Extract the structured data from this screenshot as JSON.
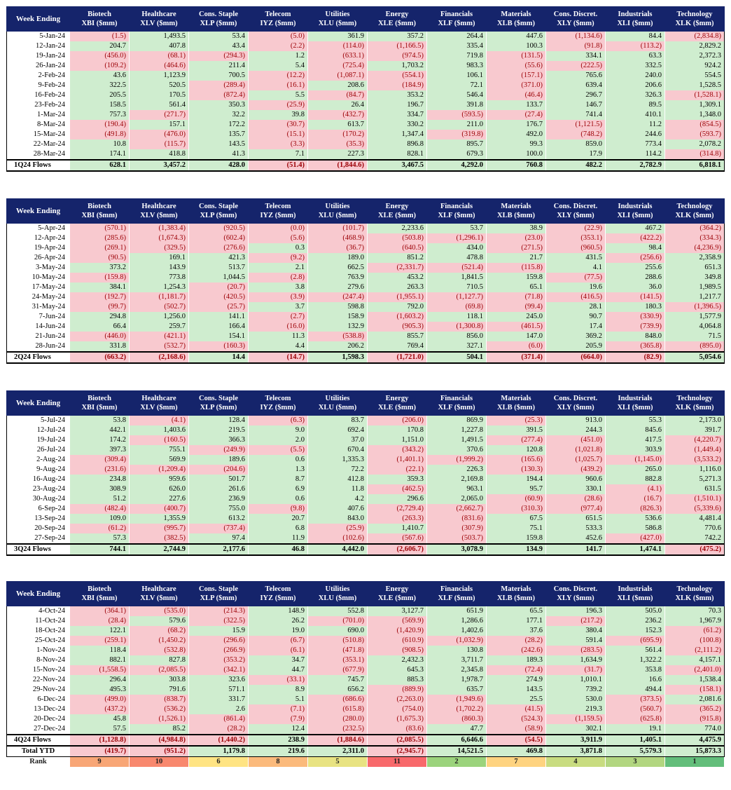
{
  "header": {
    "week_ending": "Week Ending",
    "columns": [
      {
        "sector": "Biotech",
        "ticker": "XBI ($mm)"
      },
      {
        "sector": "Healthcare",
        "ticker": "XLV ($mm)"
      },
      {
        "sector": "Cons. Staple",
        "ticker": "XLP ($mm)"
      },
      {
        "sector": "Telecom",
        "ticker": "IYZ ($mm)"
      },
      {
        "sector": "Utilities",
        "ticker": "XLU ($mm)"
      },
      {
        "sector": "Energy",
        "ticker": "XLE ($mm)"
      },
      {
        "sector": "Financials",
        "ticker": "XLF ($mm)"
      },
      {
        "sector": "Materials",
        "ticker": "XLB ($mm)"
      },
      {
        "sector": "Cons. Discret.",
        "ticker": "XLY ($mm)"
      },
      {
        "sector": "Industrials",
        "ticker": "XLI ($mm)"
      },
      {
        "sector": "Technology",
        "ticker": "XLK ($mm)"
      }
    ]
  },
  "quarters": [
    {
      "rows": [
        {
          "week": "5-Jan-24",
          "values": [
            "(1.5)",
            "1,493.5",
            "53.4",
            "(5.0)",
            "361.9",
            "357.2",
            "264.4",
            "447.6",
            "(1,134.6)",
            "84.4",
            "(2,834.8)"
          ]
        },
        {
          "week": "12-Jan-24",
          "values": [
            "204.7",
            "407.8",
            "43.4",
            "(2.2)",
            "(114.0)",
            "(1,166.5)",
            "335.4",
            "100.3",
            "(91.8)",
            "(113.2)",
            "2,829.2"
          ]
        },
        {
          "week": "19-Jan-24",
          "values": [
            "(456.0)",
            "(68.1)",
            "(294.3)",
            "1.2",
            "(633.1)",
            "(974.5)",
            "719.8",
            "(131.5)",
            "334.1",
            "63.3",
            "2,372.3"
          ]
        },
        {
          "week": "26-Jan-24",
          "values": [
            "(109.2)",
            "(464.6)",
            "211.4",
            "5.4",
            "(725.4)",
            "1,703.2",
            "983.3",
            "(55.6)",
            "(222.5)",
            "332.5",
            "924.2"
          ]
        },
        {
          "week": "2-Feb-24",
          "values": [
            "43.6",
            "1,123.9",
            "700.5",
            "(12.2)",
            "(1,087.1)",
            "(554.1)",
            "106.1",
            "(157.1)",
            "765.6",
            "240.0",
            "554.5"
          ]
        },
        {
          "week": "9-Feb-24",
          "values": [
            "322.5",
            "520.5",
            "(289.4)",
            "(16.1)",
            "208.6",
            "(184.9)",
            "72.1",
            "(371.0)",
            "639.4",
            "206.6",
            "1,528.5"
          ]
        },
        {
          "week": "16-Feb-24",
          "values": [
            "205.5",
            "170.5",
            "(872.4)",
            "5.5",
            "(84.7)",
            "353.2",
            "546.4",
            "(46.4)",
            "296.7",
            "326.3",
            "(1,528.1)"
          ]
        },
        {
          "week": "23-Feb-24",
          "values": [
            "158.5",
            "561.4",
            "350.3",
            "(25.9)",
            "26.4",
            "196.7",
            "391.8",
            "133.7",
            "146.7",
            "89.5",
            "1,309.1"
          ]
        },
        {
          "week": "1-Mar-24",
          "values": [
            "757.3",
            "(271.7)",
            "32.2",
            "39.8",
            "(432.7)",
            "334.7",
            "(593.5)",
            "(27.4)",
            "741.4",
            "410.1",
            "1,348.0"
          ]
        },
        {
          "week": "8-Mar-24",
          "values": [
            "(190.4)",
            "157.1",
            "172.2",
            "(30.7)",
            "613.7",
            "330.2",
            "211.0",
            "176.7",
            "(1,121.5)",
            "11.2",
            "(854.5)"
          ]
        },
        {
          "week": "15-Mar-24",
          "values": [
            "(491.8)",
            "(476.0)",
            "135.7",
            "(15.1)",
            "(170.2)",
            "1,347.4",
            "(319.8)",
            "492.0",
            "(748.2)",
            "244.6",
            "(593.7)"
          ]
        },
        {
          "week": "22-Mar-24",
          "values": [
            "10.8",
            "(115.7)",
            "143.5",
            "(3.3)",
            "(35.3)",
            "896.8",
            "895.7",
            "99.3",
            "859.0",
            "773.4",
            "2,078.2"
          ]
        },
        {
          "week": "28-Mar-24",
          "values": [
            "174.1",
            "418.8",
            "41.3",
            "7.1",
            "227.3",
            "828.1",
            "679.3",
            "100.0",
            "17.9",
            "114.2",
            "(314.8)"
          ]
        }
      ],
      "summary": {
        "label": "1Q24 Flows",
        "values": [
          "628.1",
          "3,457.2",
          "428.0",
          "(51.4)",
          "(1,844.6)",
          "3,467.5",
          "4,292.0",
          "760.8",
          "482.2",
          "2,782.9",
          "6,818.1"
        ]
      }
    },
    {
      "rows": [
        {
          "week": "5-Apr-24",
          "values": [
            "(570.1)",
            "(1,383.4)",
            "(920.5)",
            "(0.0)",
            "(101.7)",
            "2,233.6",
            "53.7",
            "38.9",
            "(22.9)",
            "467.2",
            "(364.2)"
          ]
        },
        {
          "week": "12-Apr-24",
          "values": [
            "(285.6)",
            "(1,674.3)",
            "(602.4)",
            "(5.6)",
            "(468.9)",
            "(503.8)",
            "(1,296.1)",
            "(23.0)",
            "(353.1)",
            "(422.2)",
            "(334.3)"
          ]
        },
        {
          "week": "19-Apr-24",
          "values": [
            "(269.1)",
            "(329.5)",
            "(276.6)",
            "0.3",
            "(36.7)",
            "(640.5)",
            "434.0",
            "(271.5)",
            "(960.5)",
            "98.4",
            "(4,236.9)"
          ]
        },
        {
          "week": "26-Apr-24",
          "values": [
            "(90.5)",
            "169.1",
            "421.3",
            "(9.2)",
            "189.0",
            "851.2",
            "478.8",
            "21.7",
            "431.5",
            "(256.6)",
            "2,358.9"
          ]
        },
        {
          "week": "3-May-24",
          "values": [
            "373.2",
            "143.9",
            "513.7",
            "2.1",
            "662.5",
            "(2,331.7)",
            "(521.4)",
            "(115.8)",
            "4.1",
            "255.6",
            "651.3"
          ]
        },
        {
          "week": "10-May-24",
          "values": [
            "(159.8)",
            "773.8",
            "1,044.5",
            "(2.8)",
            "763.9",
            "453.2",
            "1,841.5",
            "159.8",
            "(77.5)",
            "288.6",
            "349.8"
          ]
        },
        {
          "week": "17-May-24",
          "values": [
            "384.1",
            "1,254.3",
            "(20.7)",
            "3.8",
            "279.6",
            "263.3",
            "710.5",
            "65.1",
            "19.6",
            "36.0",
            "1,989.5"
          ]
        },
        {
          "week": "24-May-24",
          "values": [
            "(192.7)",
            "(1,181.7)",
            "(420.5)",
            "(3.9)",
            "(247.4)",
            "(1,955.1)",
            "(1,127.7)",
            "(71.8)",
            "(416.5)",
            "(141.5)",
            "1,217.7"
          ]
        },
        {
          "week": "31-May-24",
          "values": [
            "(99.7)",
            "(502.7)",
            "(25.7)",
            "3.7",
            "598.8",
            "792.0",
            "(69.8)",
            "(99.4)",
            "28.1",
            "180.3",
            "(1,396.5)"
          ]
        },
        {
          "week": "7-Jun-24",
          "values": [
            "294.8",
            "1,256.0",
            "141.1",
            "(2.7)",
            "158.9",
            "(1,603.2)",
            "118.1",
            "245.0",
            "90.7",
            "(330.9)",
            "1,577.9"
          ]
        },
        {
          "week": "14-Jun-24",
          "values": [
            "66.4",
            "259.7",
            "166.4",
            "(16.0)",
            "132.9",
            "(905.3)",
            "(1,300.8)",
            "(461.5)",
            "17.4",
            "(739.9)",
            "4,064.8"
          ]
        },
        {
          "week": "21-Jun-24",
          "values": [
            "(446.0)",
            "(421.1)",
            "154.1",
            "11.3",
            "(538.8)",
            "855.7",
            "856.0",
            "147.0",
            "369.2",
            "848.0",
            "71.5"
          ]
        },
        {
          "week": "28-Jun-24",
          "values": [
            "331.8",
            "(532.7)",
            "(160.3)",
            "4.4",
            "206.2",
            "769.4",
            "327.1",
            "(6.0)",
            "205.9",
            "(365.8)",
            "(895.0)"
          ]
        }
      ],
      "summary": {
        "label": "2Q24 Flows",
        "values": [
          "(663.2)",
          "(2,168.6)",
          "14.4",
          "(14.7)",
          "1,598.3",
          "(1,721.0)",
          "504.1",
          "(371.4)",
          "(664.0)",
          "(82.9)",
          "5,054.6"
        ]
      }
    },
    {
      "rows": [
        {
          "week": "5-Jul-24",
          "values": [
            "53.8",
            "(4.1)",
            "128.4",
            "(6.3)",
            "83.7",
            "(206.0)",
            "869.9",
            "(25.3)",
            "913.0",
            "55.3",
            "2,173.0"
          ]
        },
        {
          "week": "12-Jul-24",
          "values": [
            "442.1",
            "1,403.6",
            "219.5",
            "9.0",
            "692.4",
            "170.8",
            "1,227.8",
            "391.5",
            "244.3",
            "845.6",
            "391.7"
          ]
        },
        {
          "week": "19-Jul-24",
          "values": [
            "174.2",
            "(160.5)",
            "366.3",
            "2.0",
            "37.0",
            "1,151.0",
            "1,491.5",
            "(277.4)",
            "(451.0)",
            "417.5",
            "(4,220.7)"
          ]
        },
        {
          "week": "26-Jul-24",
          "values": [
            "397.3",
            "755.1",
            "(249.9)",
            "(5.5)",
            "670.4",
            "(343.2)",
            "370.6",
            "120.8",
            "(1,021.8)",
            "303.9",
            "(1,449.4)"
          ]
        },
        {
          "week": "2-Aug-24",
          "values": [
            "(309.4)",
            "569.9",
            "189.6",
            "0.6",
            "1,335.3",
            "(1,401.1)",
            "(1,999.2)",
            "(165.6)",
            "(1,025.7)",
            "(1,145.0)",
            "(3,533.2)"
          ]
        },
        {
          "week": "9-Aug-24",
          "values": [
            "(231.6)",
            "(1,209.4)",
            "(204.6)",
            "1.3",
            "72.2",
            "(22.1)",
            "226.3",
            "(130.3)",
            "(439.2)",
            "265.0",
            "1,116.0"
          ]
        },
        {
          "week": "16-Aug-24",
          "values": [
            "234.8",
            "959.6",
            "501.7",
            "8.7",
            "412.8",
            "359.3",
            "2,169.8",
            "194.4",
            "960.6",
            "882.8",
            "5,271.3"
          ]
        },
        {
          "week": "23-Aug-24",
          "values": [
            "308.9",
            "626.0",
            "261.6",
            "6.9",
            "11.8",
            "(462.5)",
            "963.1",
            "95.7",
            "330.1",
            "(4.1)",
            "631.5"
          ]
        },
        {
          "week": "30-Aug-24",
          "values": [
            "51.2",
            "227.6",
            "236.9",
            "0.6",
            "4.2",
            "296.6",
            "2,065.0",
            "(60.9)",
            "(28.6)",
            "(16.7)",
            "(1,510.1)"
          ]
        },
        {
          "week": "6-Sep-24",
          "values": [
            "(482.4)",
            "(400.7)",
            "755.0",
            "(9.8)",
            "407.6",
            "(2,729.4)",
            "(2,662.7)",
            "(310.3)",
            "(977.4)",
            "(826.3)",
            "(5,339.6)"
          ]
        },
        {
          "week": "13-Sep-24",
          "values": [
            "109.0",
            "1,355.9",
            "613.2",
            "20.7",
            "843.0",
            "(263.3)",
            "(831.6)",
            "67.5",
            "651.5",
            "536.6",
            "4,481.4"
          ]
        },
        {
          "week": "20-Sep-24",
          "values": [
            "(61.2)",
            "(995.7)",
            "(737.4)",
            "6.8",
            "(25.9)",
            "1,410.7",
            "(307.9)",
            "75.1",
            "533.3",
            "586.8",
            "770.6"
          ]
        },
        {
          "week": "27-Sep-24",
          "values": [
            "57.3",
            "(382.5)",
            "97.4",
            "11.9",
            "(102.6)",
            "(567.6)",
            "(503.7)",
            "159.8",
            "452.6",
            "(427.0)",
            "742.2"
          ]
        }
      ],
      "summary": {
        "label": "3Q24 Flows",
        "values": [
          "744.1",
          "2,744.9",
          "2,177.6",
          "46.8",
          "4,442.0",
          "(2,606.7)",
          "3,078.9",
          "134.9",
          "141.7",
          "1,474.1",
          "(475.2)"
        ]
      }
    },
    {
      "rows": [
        {
          "week": "4-Oct-24",
          "values": [
            "(364.1)",
            "(535.0)",
            "(214.3)",
            "148.9",
            "552.8",
            "3,127.7",
            "651.9",
            "65.5",
            "196.3",
            "505.0",
            "70.3"
          ]
        },
        {
          "week": "11-Oct-24",
          "values": [
            "(28.4)",
            "579.6",
            "(322.5)",
            "26.2",
            "(701.0)",
            "(569.9)",
            "1,286.6",
            "177.1",
            "(217.2)",
            "236.2",
            "1,967.9"
          ]
        },
        {
          "week": "18-Oct-24",
          "values": [
            "122.1",
            "(68.2)",
            "15.9",
            "19.0",
            "690.0",
            "(1,420.9)",
            "1,402.6",
            "37.6",
            "380.4",
            "152.3",
            "(61.2)"
          ]
        },
        {
          "week": "25-Oct-24",
          "values": [
            "(259.1)",
            "(1,450.2)",
            "(296.6)",
            "(6.7)",
            "(510.8)",
            "(610.9)",
            "(1,032.9)",
            "(28.2)",
            "591.4",
            "(695.9)",
            "(100.8)"
          ]
        },
        {
          "week": "1-Nov-24",
          "values": [
            "118.4",
            "(532.8)",
            "(266.9)",
            "(6.1)",
            "(471.8)",
            "(908.5)",
            "130.8",
            "(242.6)",
            "(283.5)",
            "561.4",
            "(2,111.2)"
          ]
        },
        {
          "week": "8-Nov-24",
          "values": [
            "882.1",
            "827.8",
            "(353.2)",
            "34.7",
            "(353.1)",
            "2,432.3",
            "3,711.7",
            "189.3",
            "1,634.9",
            "1,322.2",
            "4,157.1"
          ]
        },
        {
          "week": "15-Nov-24",
          "values": [
            "(1,558.5)",
            "(2,085.5)",
            "(342.1)",
            "44.7",
            "(677.9)",
            "645.3",
            "2,345.8",
            "(72.4)",
            "(31.7)",
            "353.8",
            "(2,401.0)"
          ]
        },
        {
          "week": "22-Nov-24",
          "values": [
            "296.4",
            "303.8",
            "323.6",
            "(33.1)",
            "745.7",
            "885.3",
            "1,978.7",
            "274.9",
            "1,010.1",
            "16.6",
            "1,538.4"
          ]
        },
        {
          "week": "29-Nov-24",
          "values": [
            "495.3",
            "791.6",
            "571.1",
            "8.9",
            "656.2",
            "(889.9)",
            "635.7",
            "143.5",
            "739.2",
            "494.4",
            "(158.1)"
          ]
        },
        {
          "week": "6-Dec-24",
          "values": [
            "(499.0)",
            "(838.7)",
            "331.7",
            "5.1",
            "(686.6)",
            "(2,263.0)",
            "(1,949.6)",
            "25.5",
            "530.0",
            "(373.5)",
            "2,081.6"
          ]
        },
        {
          "week": "13-Dec-24",
          "values": [
            "(437.2)",
            "(536.2)",
            "2.6",
            "(7.1)",
            "(615.8)",
            "(754.0)",
            "(1,702.2)",
            "(41.5)",
            "219.3",
            "(560.7)",
            "(365.2)"
          ]
        },
        {
          "week": "20-Dec-24",
          "values": [
            "45.8",
            "(1,526.1)",
            "(861.4)",
            "(7.9)",
            "(280.0)",
            "(1,675.3)",
            "(860.3)",
            "(524.3)",
            "(1,159.5)",
            "(625.8)",
            "(915.8)"
          ]
        },
        {
          "week": "27-Dec-24",
          "values": [
            "57.5",
            "85.2",
            "(28.2)",
            "12.4",
            "(232.5)",
            "(83.6)",
            "47.7",
            "(58.9)",
            "302.1",
            "19.1",
            "774.0"
          ]
        }
      ],
      "summary": {
        "label": "4Q24 Flows",
        "values": [
          "(1,128.8)",
          "(4,984.8)",
          "(1,440.2)",
          "238.9",
          "(1,884.6)",
          "(2,085.5)",
          "6,646.6",
          "(54.5)",
          "3,911.9",
          "1,405.1",
          "4,475.9"
        ]
      }
    }
  ],
  "total_ytd": {
    "label": "Total YTD",
    "values": [
      "(419.7)",
      "(951.2)",
      "1,179.8",
      "219.6",
      "2,311.0",
      "(2,945.7)",
      "14,521.5",
      "469.8",
      "3,871.8",
      "5,579.3",
      "15,873.3"
    ]
  },
  "rank": {
    "label": "Rank",
    "values": [
      "9",
      "10",
      "6",
      "8",
      "5",
      "11",
      "2",
      "7",
      "4",
      "3",
      "1"
    ],
    "colors": [
      "#f8a676",
      "#f8886e",
      "#ffe483",
      "#fbba7c",
      "#e8e382",
      "#f8696b",
      "#9bd37c",
      "#fed380",
      "#c8dc80",
      "#b2d680",
      "#63be7b"
    ]
  }
}
